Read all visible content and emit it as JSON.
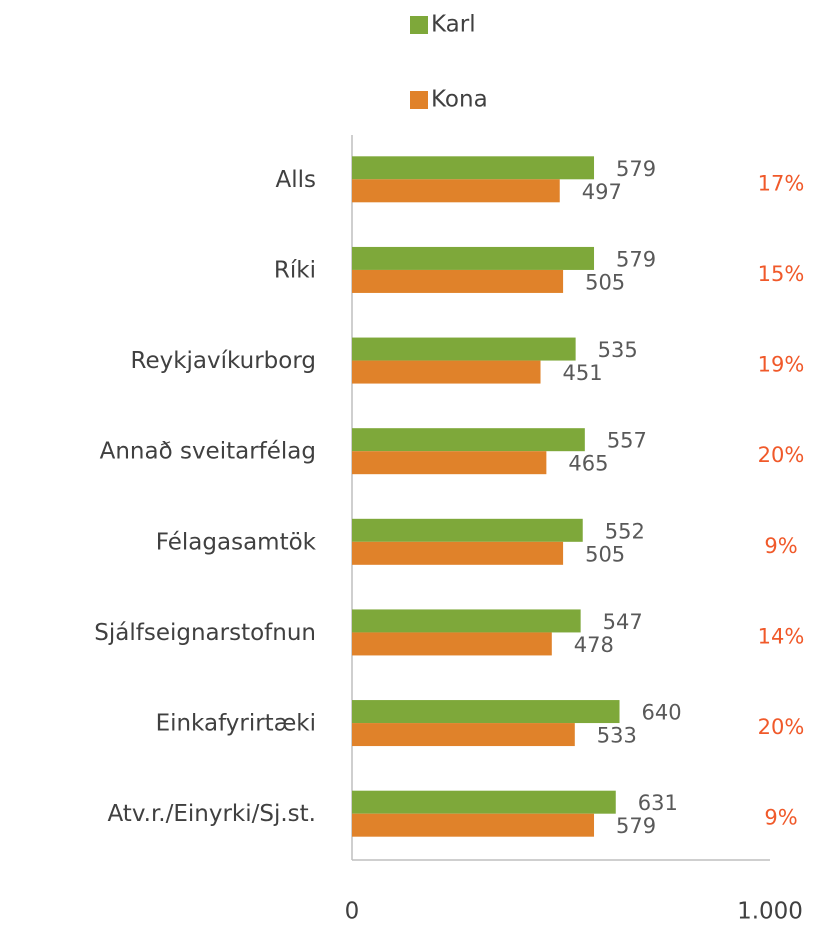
{
  "chart_data": {
    "type": "hbar",
    "categories": [
      "Alls",
      "Ríki",
      "Reykjavíkurborg",
      "Annað sveitarfélag",
      "Félagasamtök",
      "Sjálfseignarstofnun",
      "Einkafyrirtæki",
      "Atv.r./Einyrki/Sj.st."
    ],
    "series": [
      {
        "name": "Karl",
        "color": "#7ea83a",
        "values": [
          579,
          579,
          535,
          557,
          552,
          547,
          640,
          631
        ]
      },
      {
        "name": "Kona",
        "color": "#e0822a",
        "values": [
          497,
          505,
          451,
          465,
          505,
          478,
          533,
          579
        ]
      }
    ],
    "annotations": [
      "17%",
      "15%",
      "19%",
      "20%",
      "9%",
      "14%",
      "20%",
      "9%"
    ],
    "annotation_color": "#f0592a",
    "xlim": [
      0,
      1000
    ],
    "xticks": [
      0,
      {
        "value": 1000,
        "label": "1.000"
      }
    ],
    "grid": false,
    "legend": "top"
  }
}
